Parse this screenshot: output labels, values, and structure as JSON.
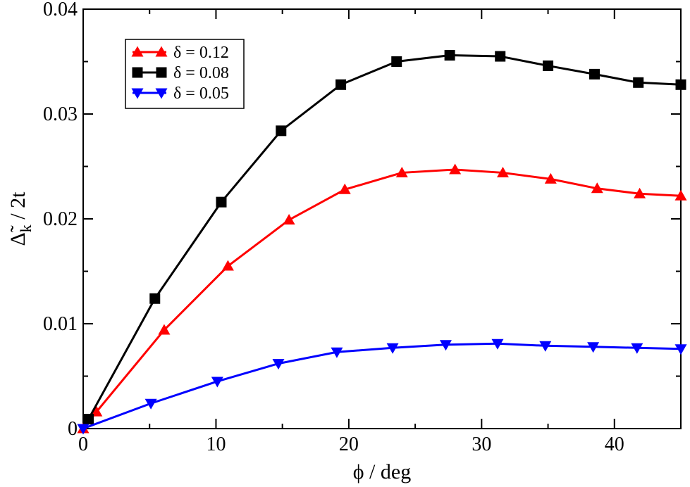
{
  "chart_data": {
    "type": "line",
    "title": "",
    "xlabel": "ϕ / deg",
    "ylabel": "Δ̃",
    "ylabel_sub": "k",
    "ylabel_suffix": " / 2t",
    "xlim": [
      0,
      45
    ],
    "ylim": [
      0,
      0.04
    ],
    "xticks": [
      0,
      10,
      20,
      30,
      40
    ],
    "xtick_labels": [
      "0",
      "10",
      "20",
      "30",
      "40"
    ],
    "yticks": [
      0,
      0.01,
      0.02,
      0.03,
      0.04
    ],
    "ytick_labels": [
      "0",
      "0.01",
      "0.02",
      "0.03",
      "0.04"
    ],
    "legend_position": "top-left",
    "series": [
      {
        "name": "δ = 0.12",
        "color": "#ff0000",
        "marker": "triangle-up",
        "x": [
          0,
          1.0,
          6.1,
          10.9,
          15.5,
          19.7,
          24.0,
          28.0,
          31.6,
          35.2,
          38.7,
          41.9,
          45.0
        ],
        "y": [
          0,
          0.0016,
          0.0094,
          0.0155,
          0.0199,
          0.0228,
          0.0244,
          0.0247,
          0.0244,
          0.0238,
          0.0229,
          0.0224,
          0.0222
        ]
      },
      {
        "name": "δ = 0.08",
        "color": "#000000",
        "marker": "square",
        "x": [
          0.4,
          5.4,
          10.4,
          14.9,
          19.4,
          23.6,
          27.6,
          31.4,
          35.0,
          38.5,
          41.8,
          45.0
        ],
        "y": [
          0.0009,
          0.0124,
          0.0216,
          0.0284,
          0.0328,
          0.035,
          0.0356,
          0.0355,
          0.0346,
          0.0338,
          0.033,
          0.0328
        ]
      },
      {
        "name": "δ = 0.05",
        "color": "#0000ff",
        "marker": "triangle-down",
        "x": [
          0,
          5.1,
          10.1,
          14.7,
          19.1,
          23.3,
          27.3,
          31.2,
          34.8,
          38.4,
          41.7,
          45.0
        ],
        "y": [
          0,
          0.0024,
          0.0045,
          0.0062,
          0.0073,
          0.0077,
          0.008,
          0.0081,
          0.0079,
          0.0078,
          0.0077,
          0.0076
        ]
      }
    ]
  }
}
